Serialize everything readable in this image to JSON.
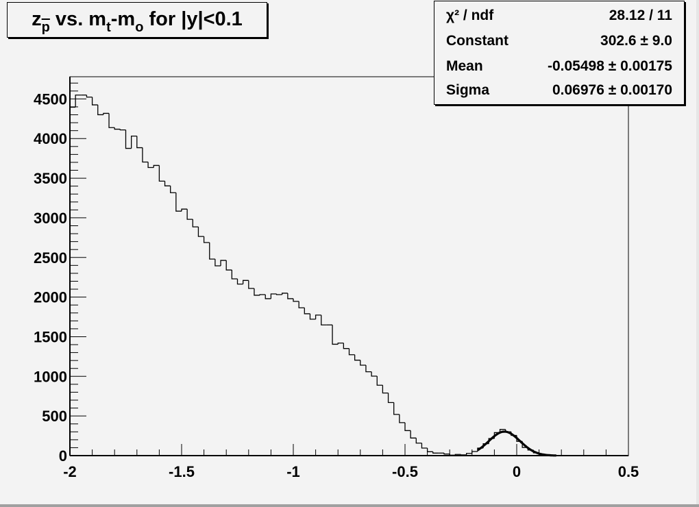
{
  "chart_data": {
    "type": "histogram",
    "title_parts": [
      "z",
      "p",
      " vs. m",
      "t",
      "-m",
      "o",
      " for |y|<0.1"
    ],
    "xlim": [
      -2,
      0.5
    ],
    "ylim": [
      0,
      4780
    ],
    "bin_width": 0.025,
    "x_ticks": [
      "-2",
      "-1.5",
      "-1",
      "-0.5",
      "0",
      "0.5"
    ],
    "x_tick_values": [
      -2,
      -1.5,
      -1,
      -0.5,
      0,
      0.5
    ],
    "y_ticks": [
      "0",
      "500",
      "1000",
      "1500",
      "2000",
      "2500",
      "3000",
      "3500",
      "4000",
      "4500"
    ],
    "y_tick_values": [
      0,
      500,
      1000,
      1500,
      2000,
      2500,
      3000,
      3500,
      4000,
      4500
    ],
    "bin_contents": [
      4396,
      4549,
      4549,
      4523,
      4425,
      4301,
      4318,
      4138,
      4118,
      4109,
      3876,
      4031,
      3885,
      3704,
      3635,
      3661,
      3463,
      3403,
      3317,
      3084,
      3110,
      2981,
      2886,
      2765,
      2688,
      2480,
      2394,
      2463,
      2342,
      2230,
      2164,
      2210,
      2109,
      2023,
      2031,
      1980,
      2040,
      2031,
      2049,
      1980,
      1946,
      1865,
      1790,
      1721,
      1773,
      1649,
      1649,
      1405,
      1420,
      1351,
      1273,
      1204,
      1141,
      1058,
      1003,
      888,
      790,
      670,
      520,
      416,
      316,
      222,
      158,
      95,
      49,
      32,
      32,
      20,
      6,
      15,
      10,
      28,
      52,
      95,
      150,
      216,
      290,
      330,
      300,
      255,
      180,
      103,
      70,
      35,
      15,
      8,
      3,
      1,
      0,
      0,
      0,
      0,
      0,
      0,
      0,
      0,
      0,
      0,
      0,
      0
    ],
    "fit": {
      "function": "gaus",
      "constant": 302.6,
      "mean": -0.05498,
      "sigma": 0.06976,
      "range": [
        -0.175,
        0.18
      ]
    },
    "grid": false,
    "stats_box": {
      "placement": "top-right",
      "rows": [
        {
          "label": "χ² / ndf",
          "value": "28.12 / 11"
        },
        {
          "label": "Constant",
          "value": "302.6 ± 9.0"
        },
        {
          "label": "Mean",
          "value": "-0.05498 ± 0.00175"
        },
        {
          "label": "Sigma",
          "value": "0.06976 ± 0.00170"
        }
      ]
    },
    "colors": {
      "background": "#f3f3f3",
      "line": "#000000"
    }
  }
}
